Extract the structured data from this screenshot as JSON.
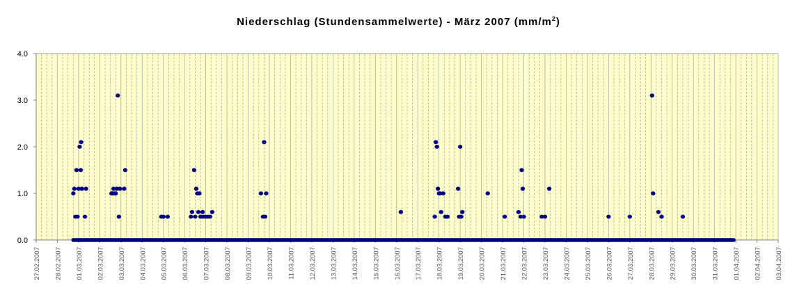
{
  "chart_data": {
    "type": "scatter",
    "title": "Niederschlag (Stundensammelwerte) - März 2007 (mm/m",
    "title_sup": "2",
    "ylim": [
      0,
      4
    ],
    "y_ticks": [
      "0.0",
      "1.0",
      "2.0",
      "3.0",
      "4.0"
    ],
    "x_tick_labels": [
      "27.02.2007",
      "28.02.2007",
      "01.03.2007",
      "02.03.2007",
      "03.03.2007",
      "04.03.2007",
      "05.03.2007",
      "06.03.2007",
      "07.03.2007",
      "08.03.2007",
      "09.03.2007",
      "10.03.2007",
      "11.03.2007",
      "12.03.2007",
      "13.03.2007",
      "14.03.2007",
      "15.03.2007",
      "16.03.2007",
      "17.03.2007",
      "18.03.2007",
      "19.03.2007",
      "20.03.2007",
      "21.03.2007",
      "22.03.2007",
      "23.03.2007",
      "24.03.2007",
      "25.03.2007",
      "26.03.2007",
      "27.03.2007",
      "28.03.2007",
      "29.03.2007",
      "30.03.2007",
      "31.03.2007",
      "01.04.2007",
      "02.04.2007",
      "03.04.2007"
    ],
    "grid": true,
    "colors": {
      "plot_bg": "#ffffcc",
      "marker": "#000080",
      "grid": "#a0a0a0"
    },
    "zero_line": {
      "x_start": 1.75,
      "x_end": 32.9,
      "y": 0
    },
    "points": [
      [
        1.75,
        1.0
      ],
      [
        1.8,
        1.1
      ],
      [
        1.85,
        0.5
      ],
      [
        1.9,
        1.5
      ],
      [
        1.95,
        0.5
      ],
      [
        2.0,
        1.1
      ],
      [
        2.05,
        2.0
      ],
      [
        2.1,
        1.5
      ],
      [
        2.12,
        2.1
      ],
      [
        2.15,
        1.1
      ],
      [
        2.3,
        0.5
      ],
      [
        2.35,
        1.1
      ],
      [
        3.55,
        1.0
      ],
      [
        3.6,
        1.0
      ],
      [
        3.65,
        1.1
      ],
      [
        3.7,
        1.0
      ],
      [
        3.75,
        1.0
      ],
      [
        3.8,
        1.1
      ],
      [
        3.85,
        3.1
      ],
      [
        3.9,
        0.5
      ],
      [
        3.95,
        1.1
      ],
      [
        4.15,
        1.1
      ],
      [
        4.2,
        1.5
      ],
      [
        5.9,
        0.5
      ],
      [
        6.0,
        0.5
      ],
      [
        6.2,
        0.5
      ],
      [
        7.3,
        0.5
      ],
      [
        7.35,
        0.6
      ],
      [
        7.45,
        1.5
      ],
      [
        7.5,
        0.5
      ],
      [
        7.55,
        1.1
      ],
      [
        7.6,
        1.0
      ],
      [
        7.65,
        0.6
      ],
      [
        7.7,
        1.0
      ],
      [
        7.75,
        0.5
      ],
      [
        7.8,
        0.5
      ],
      [
        7.85,
        0.6
      ],
      [
        7.9,
        0.5
      ],
      [
        8.0,
        0.5
      ],
      [
        8.1,
        0.5
      ],
      [
        8.2,
        0.5
      ],
      [
        8.3,
        0.6
      ],
      [
        10.6,
        1.0
      ],
      [
        10.7,
        0.5
      ],
      [
        10.75,
        2.1
      ],
      [
        10.8,
        0.5
      ],
      [
        10.85,
        1.0
      ],
      [
        17.2,
        0.6
      ],
      [
        18.8,
        0.5
      ],
      [
        18.85,
        2.1
      ],
      [
        18.9,
        2.0
      ],
      [
        18.95,
        1.1
      ],
      [
        19.0,
        1.0
      ],
      [
        19.05,
        1.0
      ],
      [
        19.1,
        0.6
      ],
      [
        19.2,
        1.0
      ],
      [
        19.3,
        0.5
      ],
      [
        19.4,
        0.5
      ],
      [
        19.9,
        1.1
      ],
      [
        19.95,
        0.5
      ],
      [
        20.0,
        2.0
      ],
      [
        20.05,
        0.5
      ],
      [
        20.1,
        0.6
      ],
      [
        21.3,
        1.0
      ],
      [
        22.1,
        0.5
      ],
      [
        22.75,
        0.6
      ],
      [
        22.85,
        0.5
      ],
      [
        22.9,
        1.5
      ],
      [
        22.95,
        1.1
      ],
      [
        23.0,
        0.5
      ],
      [
        23.85,
        0.5
      ],
      [
        24.0,
        0.5
      ],
      [
        24.2,
        1.1
      ],
      [
        27.0,
        0.5
      ],
      [
        28.0,
        0.5
      ],
      [
        29.05,
        3.1
      ],
      [
        29.1,
        1.0
      ],
      [
        29.35,
        0.6
      ],
      [
        29.5,
        0.5
      ],
      [
        30.5,
        0.5
      ]
    ]
  }
}
